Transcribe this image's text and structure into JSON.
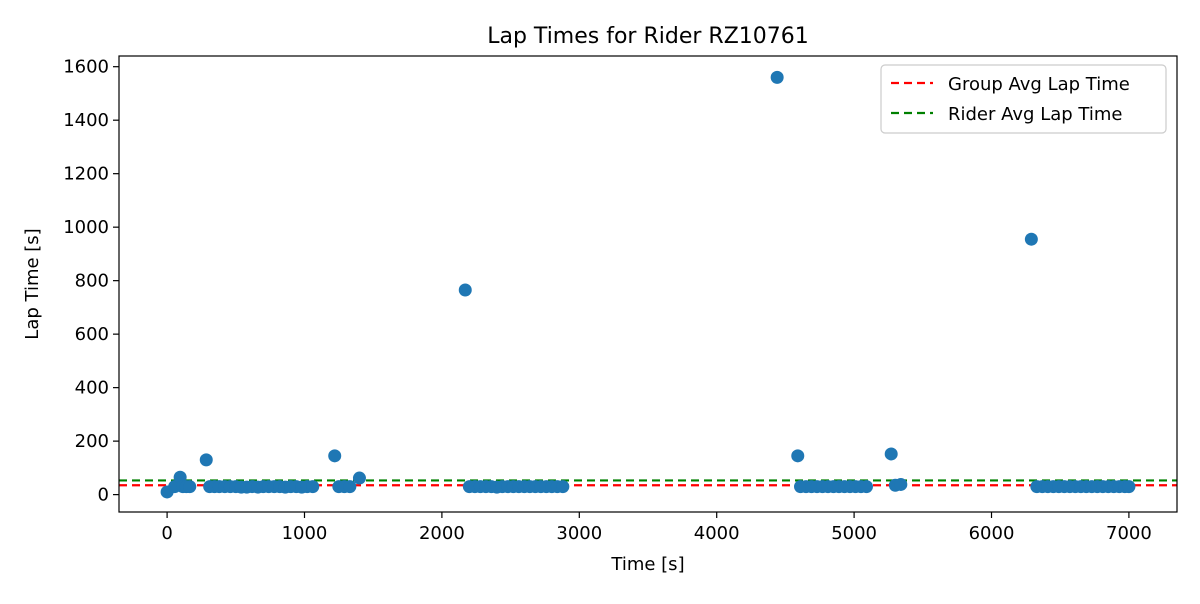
{
  "chart_data": {
    "type": "scatter",
    "title": "Lap Times for Rider RZ10761",
    "xlabel": "Time [s]",
    "ylabel": "Lap Time [s]",
    "xlim": [
      -350,
      7350
    ],
    "ylim": [
      -65,
      1640
    ],
    "xticks": [
      0,
      1000,
      2000,
      3000,
      4000,
      5000,
      6000,
      7000
    ],
    "yticks": [
      0,
      200,
      400,
      600,
      800,
      1000,
      1200,
      1400,
      1600
    ],
    "grid": false,
    "legend_position": "top-right",
    "series": [
      {
        "name": "",
        "color": "#1f77b4",
        "marker": "circle",
        "points": [
          [
            0,
            10
          ],
          [
            55,
            30
          ],
          [
            95,
            65
          ],
          [
            115,
            30
          ],
          [
            140,
            30
          ],
          [
            165,
            30
          ],
          [
            285,
            130
          ],
          [
            310,
            30
          ],
          [
            345,
            30
          ],
          [
            380,
            30
          ],
          [
            420,
            30
          ],
          [
            460,
            30
          ],
          [
            500,
            30
          ],
          [
            540,
            28
          ],
          [
            580,
            28
          ],
          [
            620,
            30
          ],
          [
            660,
            28
          ],
          [
            700,
            30
          ],
          [
            740,
            30
          ],
          [
            780,
            30
          ],
          [
            820,
            30
          ],
          [
            860,
            28
          ],
          [
            900,
            30
          ],
          [
            940,
            30
          ],
          [
            980,
            28
          ],
          [
            1020,
            30
          ],
          [
            1060,
            30
          ],
          [
            1220,
            145
          ],
          [
            1250,
            30
          ],
          [
            1290,
            30
          ],
          [
            1330,
            30
          ],
          [
            1400,
            62
          ],
          [
            2170,
            765
          ],
          [
            2200,
            30
          ],
          [
            2240,
            30
          ],
          [
            2280,
            30
          ],
          [
            2320,
            30
          ],
          [
            2360,
            30
          ],
          [
            2400,
            28
          ],
          [
            2440,
            30
          ],
          [
            2480,
            30
          ],
          [
            2520,
            30
          ],
          [
            2560,
            30
          ],
          [
            2600,
            30
          ],
          [
            2640,
            30
          ],
          [
            2680,
            30
          ],
          [
            2720,
            30
          ],
          [
            2760,
            30
          ],
          [
            2800,
            30
          ],
          [
            2840,
            30
          ],
          [
            2880,
            30
          ],
          [
            4440,
            1560
          ],
          [
            4590,
            145
          ],
          [
            4610,
            30
          ],
          [
            4650,
            30
          ],
          [
            4690,
            30
          ],
          [
            4730,
            30
          ],
          [
            4770,
            30
          ],
          [
            4810,
            30
          ],
          [
            4850,
            30
          ],
          [
            4890,
            30
          ],
          [
            4930,
            30
          ],
          [
            4970,
            30
          ],
          [
            5010,
            30
          ],
          [
            5050,
            30
          ],
          [
            5090,
            30
          ],
          [
            5270,
            152
          ],
          [
            5300,
            35
          ],
          [
            5340,
            38
          ],
          [
            6290,
            955
          ],
          [
            6330,
            30
          ],
          [
            6370,
            30
          ],
          [
            6410,
            30
          ],
          [
            6450,
            30
          ],
          [
            6490,
            30
          ],
          [
            6530,
            30
          ],
          [
            6570,
            30
          ],
          [
            6610,
            30
          ],
          [
            6650,
            30
          ],
          [
            6690,
            30
          ],
          [
            6730,
            30
          ],
          [
            6770,
            30
          ],
          [
            6810,
            30
          ],
          [
            6850,
            30
          ],
          [
            6890,
            30
          ],
          [
            6930,
            30
          ],
          [
            6970,
            30
          ],
          [
            7000,
            30
          ]
        ]
      }
    ],
    "reference_lines": [
      {
        "name": "Group Avg Lap Time",
        "y": 35,
        "color": "#ff0000",
        "style": "dashed"
      },
      {
        "name": "Rider Avg Lap Time",
        "y": 53,
        "color": "#008000",
        "style": "dashed"
      }
    ]
  }
}
